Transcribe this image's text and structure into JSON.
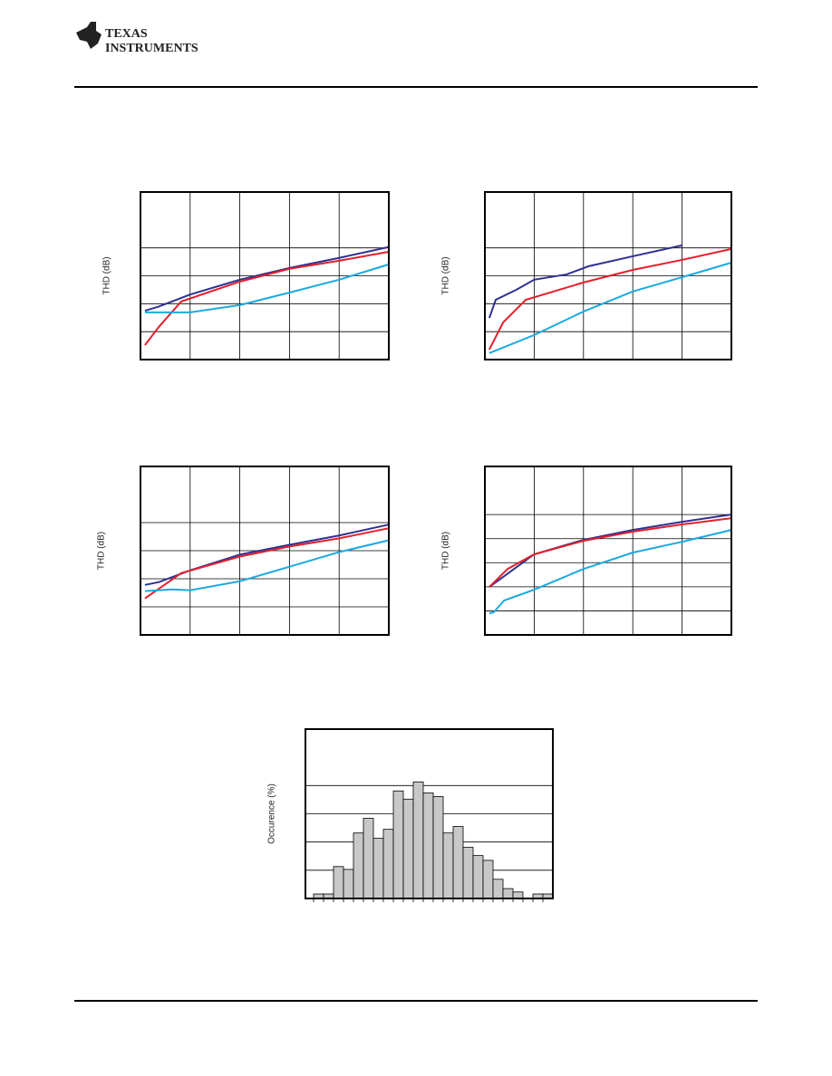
{
  "header": {
    "logo_line1": "TEXAS",
    "logo_line2": "INSTRUMENTS"
  },
  "chart_data": [
    {
      "type": "line",
      "y_label": "THD (dB)",
      "xlim": [
        0,
        5
      ],
      "ylim": [
        0,
        6
      ],
      "xticks": [
        1,
        2,
        3,
        4
      ],
      "yticks": [
        1,
        2,
        3,
        4
      ],
      "grid": true,
      "series": [
        {
          "color": "#2e3192",
          "x": [
            0.09,
            0.37,
            1,
            2,
            3,
            4,
            5
          ],
          "values": [
            1.75,
            1.9,
            2.33,
            2.86,
            3.28,
            3.64,
            4.03
          ]
        },
        {
          "color": "#e3202b",
          "x": [
            0.09,
            0.37,
            0.82,
            2,
            3,
            4,
            5
          ],
          "values": [
            0.52,
            1.17,
            2.08,
            2.79,
            3.25,
            3.54,
            3.86
          ]
        },
        {
          "color": "#1ba9e1",
          "x": [
            0.09,
            1,
            2,
            3,
            4,
            5
          ],
          "values": [
            1.69,
            1.69,
            1.95,
            2.4,
            2.86,
            3.41
          ]
        }
      ]
    },
    {
      "type": "line",
      "y_label": "THD (dB)",
      "xlim": [
        0,
        5
      ],
      "ylim": [
        0,
        6
      ],
      "xticks": [
        1,
        2,
        3,
        4
      ],
      "yticks": [
        1,
        2,
        3,
        4
      ],
      "grid": true,
      "series": [
        {
          "color": "#2e3192",
          "x": [
            0.09,
            0.22,
            0.64,
            1,
            1.66,
            2.1,
            3,
            4
          ],
          "values": [
            1.49,
            2.14,
            2.5,
            2.86,
            3.05,
            3.34,
            3.7,
            4.09
          ]
        },
        {
          "color": "#e3202b",
          "x": [
            0.09,
            0.37,
            0.83,
            2,
            3,
            4,
            5
          ],
          "values": [
            0.36,
            1.33,
            2.14,
            2.76,
            3.21,
            3.57,
            3.96
          ]
        },
        {
          "color": "#1ba9e1",
          "x": [
            0.09,
            1,
            2,
            3,
            4,
            5
          ],
          "values": [
            0.23,
            0.88,
            1.72,
            2.44,
            2.95,
            3.47
          ]
        }
      ]
    },
    {
      "type": "line",
      "y_label": "THD (dB)",
      "xlim": [
        0,
        5
      ],
      "ylim": [
        0,
        6
      ],
      "xticks": [
        1,
        2,
        3,
        4
      ],
      "yticks": [
        1,
        2,
        3,
        4
      ],
      "grid": true,
      "series": [
        {
          "color": "#2e3192",
          "x": [
            0.09,
            0.37,
            1,
            2,
            3,
            4,
            5
          ],
          "values": [
            1.78,
            1.88,
            2.3,
            2.86,
            3.21,
            3.54,
            3.93
          ]
        },
        {
          "color": "#e3202b",
          "x": [
            0.09,
            0.82,
            2,
            3,
            4,
            5
          ],
          "values": [
            1.3,
            2.2,
            2.79,
            3.15,
            3.44,
            3.8
          ]
        },
        {
          "color": "#1ba9e1",
          "x": [
            0.09,
            0.64,
            1,
            2,
            3,
            4,
            5
          ],
          "values": [
            1.56,
            1.62,
            1.59,
            1.91,
            2.43,
            2.95,
            3.37
          ]
        }
      ]
    },
    {
      "type": "line",
      "y_label": "THD (dB)",
      "xlim": [
        0,
        5
      ],
      "ylim": [
        0,
        7
      ],
      "xticks": [
        1,
        2,
        3,
        4
      ],
      "yticks": [
        1,
        2,
        3,
        4,
        5
      ],
      "grid": true,
      "series": [
        {
          "color": "#2e3192",
          "x": [
            0.09,
            1,
            2,
            3,
            4,
            5
          ],
          "values": [
            1.99,
            3.35,
            3.95,
            4.36,
            4.7,
            5.0
          ]
        },
        {
          "color": "#e3202b",
          "x": [
            0.09,
            0.46,
            1,
            2,
            3,
            4,
            5
          ],
          "values": [
            1.99,
            2.74,
            3.35,
            3.91,
            4.29,
            4.59,
            4.85
          ]
        },
        {
          "color": "#1ba9e1",
          "x": [
            0.09,
            0.18,
            0.39,
            1,
            2,
            3,
            4,
            5
          ],
          "values": [
            0.9,
            0.94,
            1.43,
            1.88,
            2.74,
            3.42,
            3.87,
            4.36
          ]
        }
      ]
    },
    {
      "type": "bar",
      "y_label": "Occurence (%)",
      "ylim": [
        0,
        6
      ],
      "yticks": [
        1,
        2,
        3,
        4
      ],
      "grid": true,
      "color": "#c8c8c8",
      "categories": [
        null,
        null,
        null,
        null,
        null,
        null,
        null,
        null,
        null,
        null,
        null,
        null,
        null,
        null,
        null,
        null,
        null,
        null,
        null,
        null,
        null,
        null,
        null,
        null
      ],
      "values": [
        0.16,
        0.16,
        1.13,
        1.03,
        2.32,
        2.84,
        2.13,
        2.45,
        3.81,
        3.52,
        4.13,
        3.74,
        3.61,
        2.32,
        2.55,
        1.81,
        1.52,
        1.35,
        0.68,
        0.35,
        0.23,
        0,
        0.16,
        0.16
      ]
    }
  ]
}
